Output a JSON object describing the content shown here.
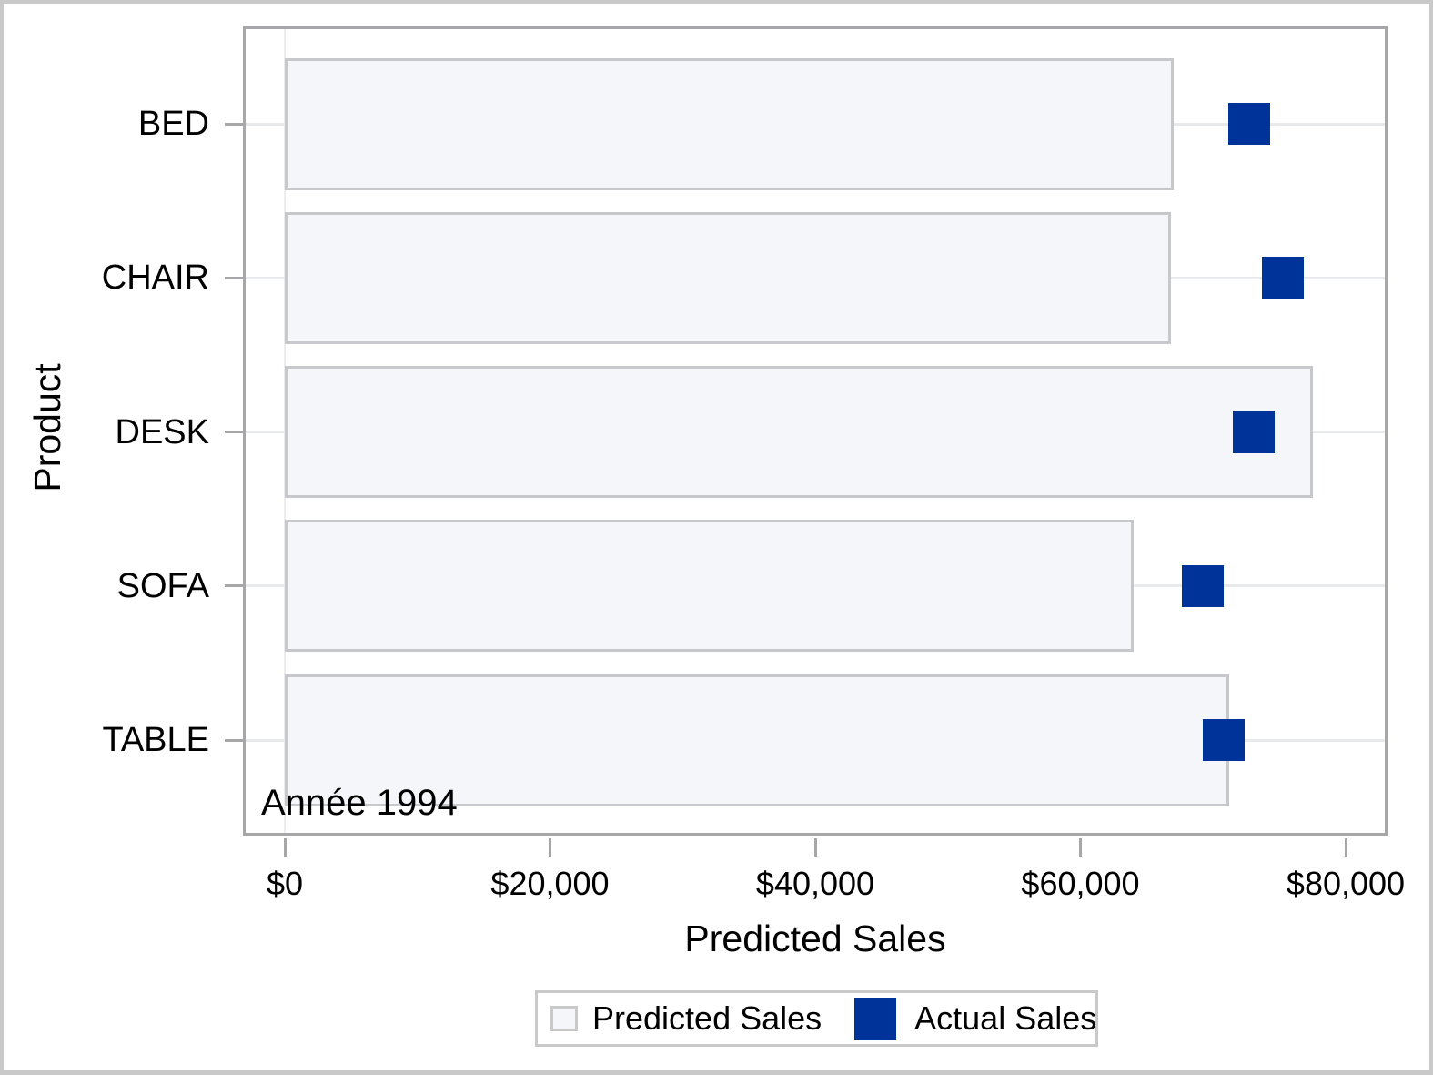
{
  "figure": {
    "annotation": "Année 1994",
    "x_axis": {
      "label": "Predicted Sales",
      "tick_labels": [
        "$0",
        "$20,000",
        "$40,000",
        "$60,000",
        "$80,000"
      ],
      "tick_values": [
        0,
        20000,
        40000,
        60000,
        80000
      ],
      "min": 0,
      "max": 80000
    },
    "y_axis": {
      "label": "Product",
      "categories": [
        "BED",
        "CHAIR",
        "DESK",
        "SOFA",
        "TABLE"
      ]
    },
    "legend": {
      "items": [
        {
          "label": "Predicted Sales",
          "swatch": "bar-square"
        },
        {
          "label": "Actual Sales",
          "swatch": "marker-square"
        }
      ]
    }
  },
  "chart_data": {
    "type": "bar",
    "orientation": "horizontal",
    "categories": [
      "BED",
      "CHAIR",
      "DESK",
      "SOFA",
      "TABLE"
    ],
    "series": [
      {
        "name": "Predicted Sales",
        "type": "bar",
        "values": [
          67000,
          66800,
          77500,
          64000,
          71200
        ]
      },
      {
        "name": "Actual Sales",
        "type": "scatter-square-marker",
        "values": [
          72700,
          75300,
          73100,
          69200,
          70800
        ]
      }
    ],
    "title": "",
    "xlabel": "Predicted Sales",
    "ylabel": "Product",
    "xlim": [
      0,
      80000
    ],
    "grid": "horizontal-band-centers",
    "legend_position": "bottom-center",
    "annotations": [
      {
        "text": "Année 1994",
        "position": "inside-bottom-left"
      }
    ]
  },
  "colors": {
    "bar_fill": "#f5f6f9",
    "bar_border": "#c6c8cc",
    "marker_blue": "#003399",
    "gridline": "#e8e9ea",
    "axis_line": "#a7a7aa",
    "outer_border": "#c9c9c9",
    "legend_border": "#c9c9c9",
    "text": "#000000"
  }
}
